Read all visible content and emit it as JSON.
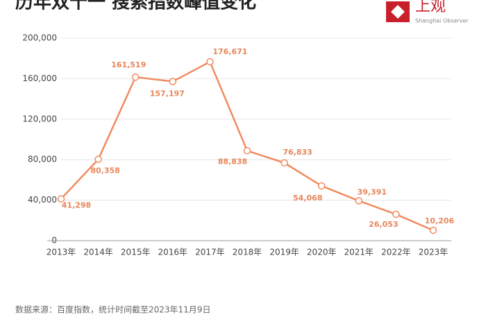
{
  "chart_data": {
    "type": "line",
    "title": "历年双十一 搜索指数峰值变化",
    "logo": "上观",
    "logo_subtitle": "Shanghai Observer",
    "note": "数据来源：百度指数，统计时间截至2023年11月9日",
    "categories": [
      "2013年",
      "2014年",
      "2015年",
      "2016年",
      "2017年",
      "2018年",
      "2019年",
      "2020年",
      "2021年",
      "2022年",
      "2023年"
    ],
    "values": [
      41298,
      80358,
      161519,
      157197,
      176671,
      88838,
      76833,
      54068,
      39391,
      26053,
      10206
    ],
    "value_labels": [
      "41,298",
      "80,358",
      "161,519",
      "157,197",
      "176,671",
      "88,838",
      "76,833",
      "54,068",
      "39,391",
      "26,053",
      "10,206"
    ],
    "color": "#ef8a5e",
    "ylim": [
      0,
      200000
    ],
    "yticks": [
      0,
      {
        "value": 40000,
        "label": "40,000"
      },
      {
        "value": 80000,
        "label": "80,000"
      },
      {
        "value": 120000,
        "label": "120,000"
      },
      {
        "value": 160000,
        "label": "160,000"
      },
      {
        "value": 200000,
        "label": "200,000"
      }
    ]
  }
}
